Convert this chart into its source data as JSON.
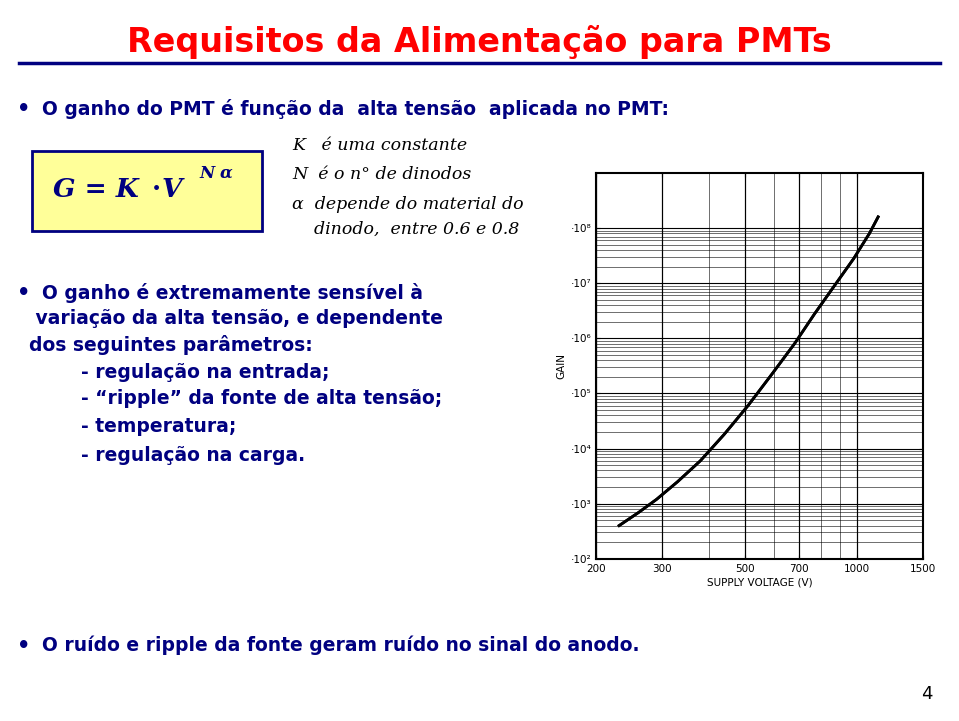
{
  "title": "Requisitos da Alimentação para PMTs",
  "title_color": "#ff0000",
  "title_fontsize": 24,
  "bg_color": "#ffffff",
  "line_color": "#000080",
  "bullet1": "O ganho do PMT é função da  alta tensão  aplicada no PMT:",
  "formula_box_color": "#ffff99",
  "k_desc": "K   é uma constante",
  "n_desc": "N  é o n° de dinodos",
  "alpha_desc_1": "α  depende do material do",
  "alpha_desc_2": "    dinodo,  entre 0.6 e 0.8",
  "bullet2_line1": "O ganho é extremamente sensível à",
  "bullet2_line2": " variação da alta tensão, e dependente",
  "bullet2_line3": "dos seguintes parâmetros:",
  "sub1": "        - regulação na entrada;",
  "sub2": "        - “ripple” da fonte de alta tensão;",
  "sub3": "        - temperatura;",
  "sub4": "        - regulação na carga.",
  "bullet3": "O ruído e ripple da fonte geram ruído no sinal do anodo.",
  "page_num": "4",
  "graph_xlabel": "SUPPLY VOLTAGE (V)",
  "graph_ylabel": "GAIN",
  "curve_x": [
    230,
    260,
    290,
    330,
    380,
    440,
    510,
    590,
    680,
    770,
    870,
    980,
    1080,
    1140
  ],
  "curve_y": [
    400,
    700,
    1200,
    2500,
    6000,
    18000,
    60000,
    220000,
    800000,
    2800000,
    9000000,
    28000000,
    80000000,
    160000000
  ]
}
